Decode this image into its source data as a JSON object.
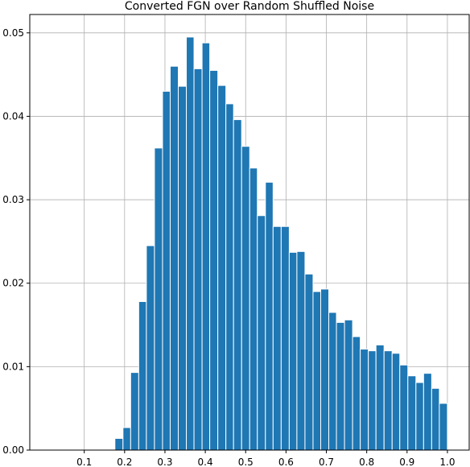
{
  "chart_data": {
    "type": "histogram",
    "title": "Converted FGN over Random Shuffled Noise",
    "bins": [
      0.176,
      0.196,
      0.215,
      0.235,
      0.254,
      0.274,
      0.294,
      0.313,
      0.333,
      0.353,
      0.372,
      0.392,
      0.411,
      0.431,
      0.451,
      0.47,
      0.49,
      0.51,
      0.529,
      0.549,
      0.568,
      0.588,
      0.608,
      0.627,
      0.647,
      0.667,
      0.686,
      0.706,
      0.725,
      0.745,
      0.765,
      0.784,
      0.804,
      0.823,
      0.843,
      0.863,
      0.882,
      0.902,
      0.922,
      0.941,
      0.961,
      0.98,
      1.0
    ],
    "values": [
      0.0014,
      0.0027,
      0.0093,
      0.0178,
      0.0245,
      0.0362,
      0.043,
      0.046,
      0.0436,
      0.0495,
      0.0457,
      0.0488,
      0.0455,
      0.0437,
      0.0415,
      0.0396,
      0.0364,
      0.0338,
      0.0281,
      0.0321,
      0.0268,
      0.0268,
      0.0237,
      0.0238,
      0.0211,
      0.019,
      0.0193,
      0.0165,
      0.0153,
      0.0156,
      0.0136,
      0.0121,
      0.0119,
      0.0126,
      0.0119,
      0.0116,
      0.0102,
      0.0089,
      0.0081,
      0.0092,
      0.0074,
      0.0056
    ],
    "color": "#1f77b4",
    "xlim": [
      -0.035,
      1.054
    ],
    "xticks": [
      0.1,
      0.2,
      0.3,
      0.4,
      0.5,
      0.6,
      0.7,
      0.8,
      0.9,
      {
        "value": 1,
        "label": "1.0"
      }
    ],
    "ylim": [
      0,
      0.0522
    ],
    "yticks": [
      {
        "value": 0,
        "label": "0.00"
      },
      0.01,
      0.02,
      0.03,
      0.04,
      0.05
    ],
    "grid": true
  }
}
